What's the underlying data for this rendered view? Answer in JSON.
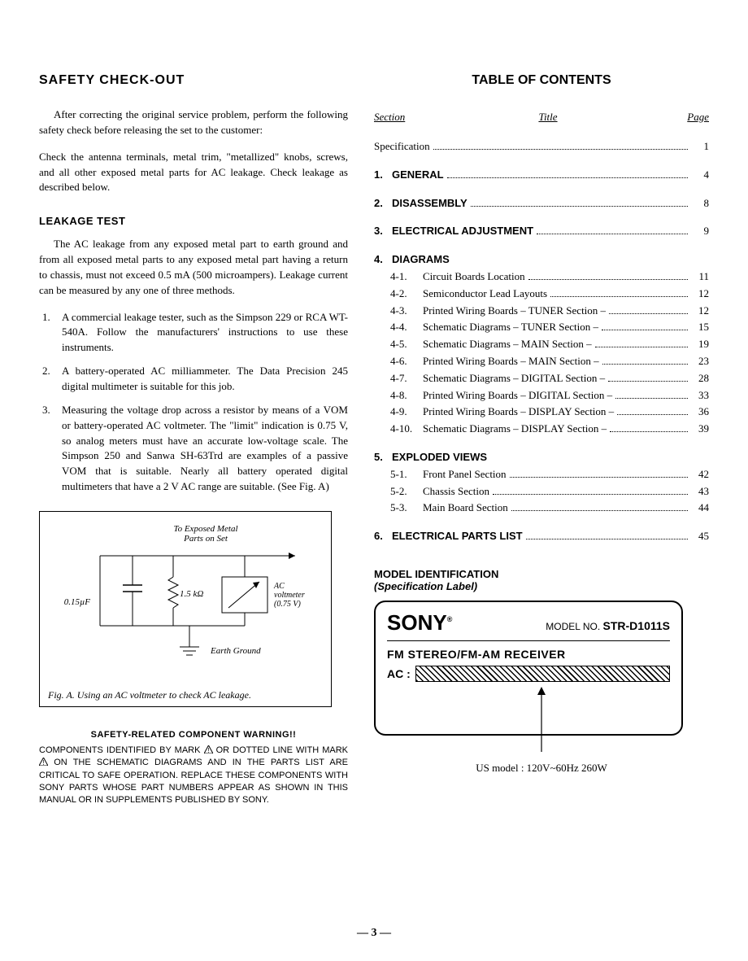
{
  "left": {
    "heading": "SAFETY  CHECK-OUT",
    "intro1": "After correcting the original service problem, perform the following safety check before releasing the set to the customer:",
    "intro2": "Check the antenna terminals, metal trim, \"metallized\" knobs, screws, and all other exposed metal parts for AC leakage.  Check leakage as described below.",
    "sub1": "LEAKAGE TEST",
    "leak_para": "The AC leakage from any exposed metal part to earth ground and from all exposed metal parts to any exposed metal part having a return to chassis, must not exceed 0.5 mA (500 microampers).   Leakage current can be measured by any one of three methods.",
    "methods": [
      "A commercial leakage tester, such as the Simpson 229 or RCA WT-540A.  Follow the manufacturers' instructions to use these instruments.",
      "A battery-operated AC milliammeter.  The Data Precision 245 digital multimeter is suitable for this job.",
      "Measuring the voltage drop across a resistor by means of a VOM or battery-operated AC voltmeter.   The \"limit\" indication is 0.75 V, so analog meters must have an accurate low-voltage scale.   The Simpson 250 and Sanwa SH-63Trd are examples of a passive VOM that is suitable.  Nearly all battery operated digital multimeters that have a 2 V AC range are suitable.  (See Fig. A)"
    ],
    "fig": {
      "top_label": "To Exposed Metal\nParts on Set",
      "cap_label": "0.15µF",
      "res_label": "1.5 kΩ",
      "meter_label": "AC\nvoltmeter\n(0.75 V)",
      "ground_label": "Earth Ground",
      "caption": "Fig. A.   Using an AC voltmeter to check AC leakage."
    },
    "warn_head": "SAFETY-RELATED COMPONENT WARNING!!",
    "warn_body_pre": "COMPONENTS IDENTIFIED BY MARK ",
    "warn_body_mid": " OR DOTTED LINE WITH MARK ",
    "warn_body_post": " ON THE SCHEMATIC DIAGRAMS AND IN THE PARTS LIST ARE CRITICAL TO SAFE OPERATION.  REPLACE THESE COMPONENTS WITH SONY PARTS WHOSE PART NUMBERS APPEAR AS SHOWN IN THIS MANUAL OR IN SUPPLEMENTS PUBLISHED BY SONY."
  },
  "right": {
    "heading": "TABLE OF CONTENTS",
    "cols": {
      "section": "Section",
      "title": "Title",
      "page": "Page"
    },
    "spec": {
      "label": "Specification",
      "page": "1"
    },
    "sections": [
      {
        "num": "1.",
        "label": "GENERAL",
        "page": "4"
      },
      {
        "num": "2.",
        "label": "DISASSEMBLY",
        "page": "8"
      },
      {
        "num": "3.",
        "label": "ELECTRICAL ADJUSTMENT",
        "page": "9"
      }
    ],
    "diagrams": {
      "num": "4.",
      "label": "DIAGRAMS",
      "items": [
        {
          "n": "4-1.",
          "t": "Circuit Boards Location",
          "p": "11"
        },
        {
          "n": "4-2.",
          "t": "Semiconductor Lead Layouts",
          "p": "12"
        },
        {
          "n": "4-3.",
          "t": "Printed Wiring Boards – TUNER Section –",
          "p": "12"
        },
        {
          "n": "4-4.",
          "t": "Schematic Diagrams – TUNER Section –",
          "p": "15"
        },
        {
          "n": "4-5.",
          "t": "Schematic Diagrams – MAIN Section –",
          "p": "19"
        },
        {
          "n": "4-6.",
          "t": "Printed Wiring Boards – MAIN Section –",
          "p": "23"
        },
        {
          "n": "4-7.",
          "t": "Schematic Diagrams – DIGITAL Section –",
          "p": "28"
        },
        {
          "n": "4-8.",
          "t": "Printed Wiring Boards – DIGITAL Section –",
          "p": "33"
        },
        {
          "n": "4-9.",
          "t": "Printed Wiring Boards – DISPLAY Section –",
          "p": "36"
        },
        {
          "n": "4-10.",
          "t": "Schematic Diagrams – DISPLAY Section –",
          "p": "39"
        }
      ]
    },
    "exploded": {
      "num": "5.",
      "label": "EXPLODED VIEWS",
      "items": [
        {
          "n": "5-1.",
          "t": "Front Panel Section",
          "p": "42"
        },
        {
          "n": "5-2.",
          "t": "Chassis Section",
          "p": "43"
        },
        {
          "n": "5-3.",
          "t": "Main Board Section",
          "p": "44"
        }
      ]
    },
    "parts": {
      "num": "6.",
      "label": "ELECTRICAL PARTS LIST",
      "page": "45"
    },
    "model_head": "MODEL IDENTIFICATION",
    "model_sub": "(Specification Label)",
    "label": {
      "sony": "SONY",
      "reg": "®",
      "modelno_label": "MODEL NO.",
      "modelno": "STR-D1011S",
      "line2": "FM STEREO/FM-AM RECEIVER",
      "ac": "AC :"
    },
    "us_model": "US model : 120V~60Hz 260W"
  },
  "page_number": "3"
}
